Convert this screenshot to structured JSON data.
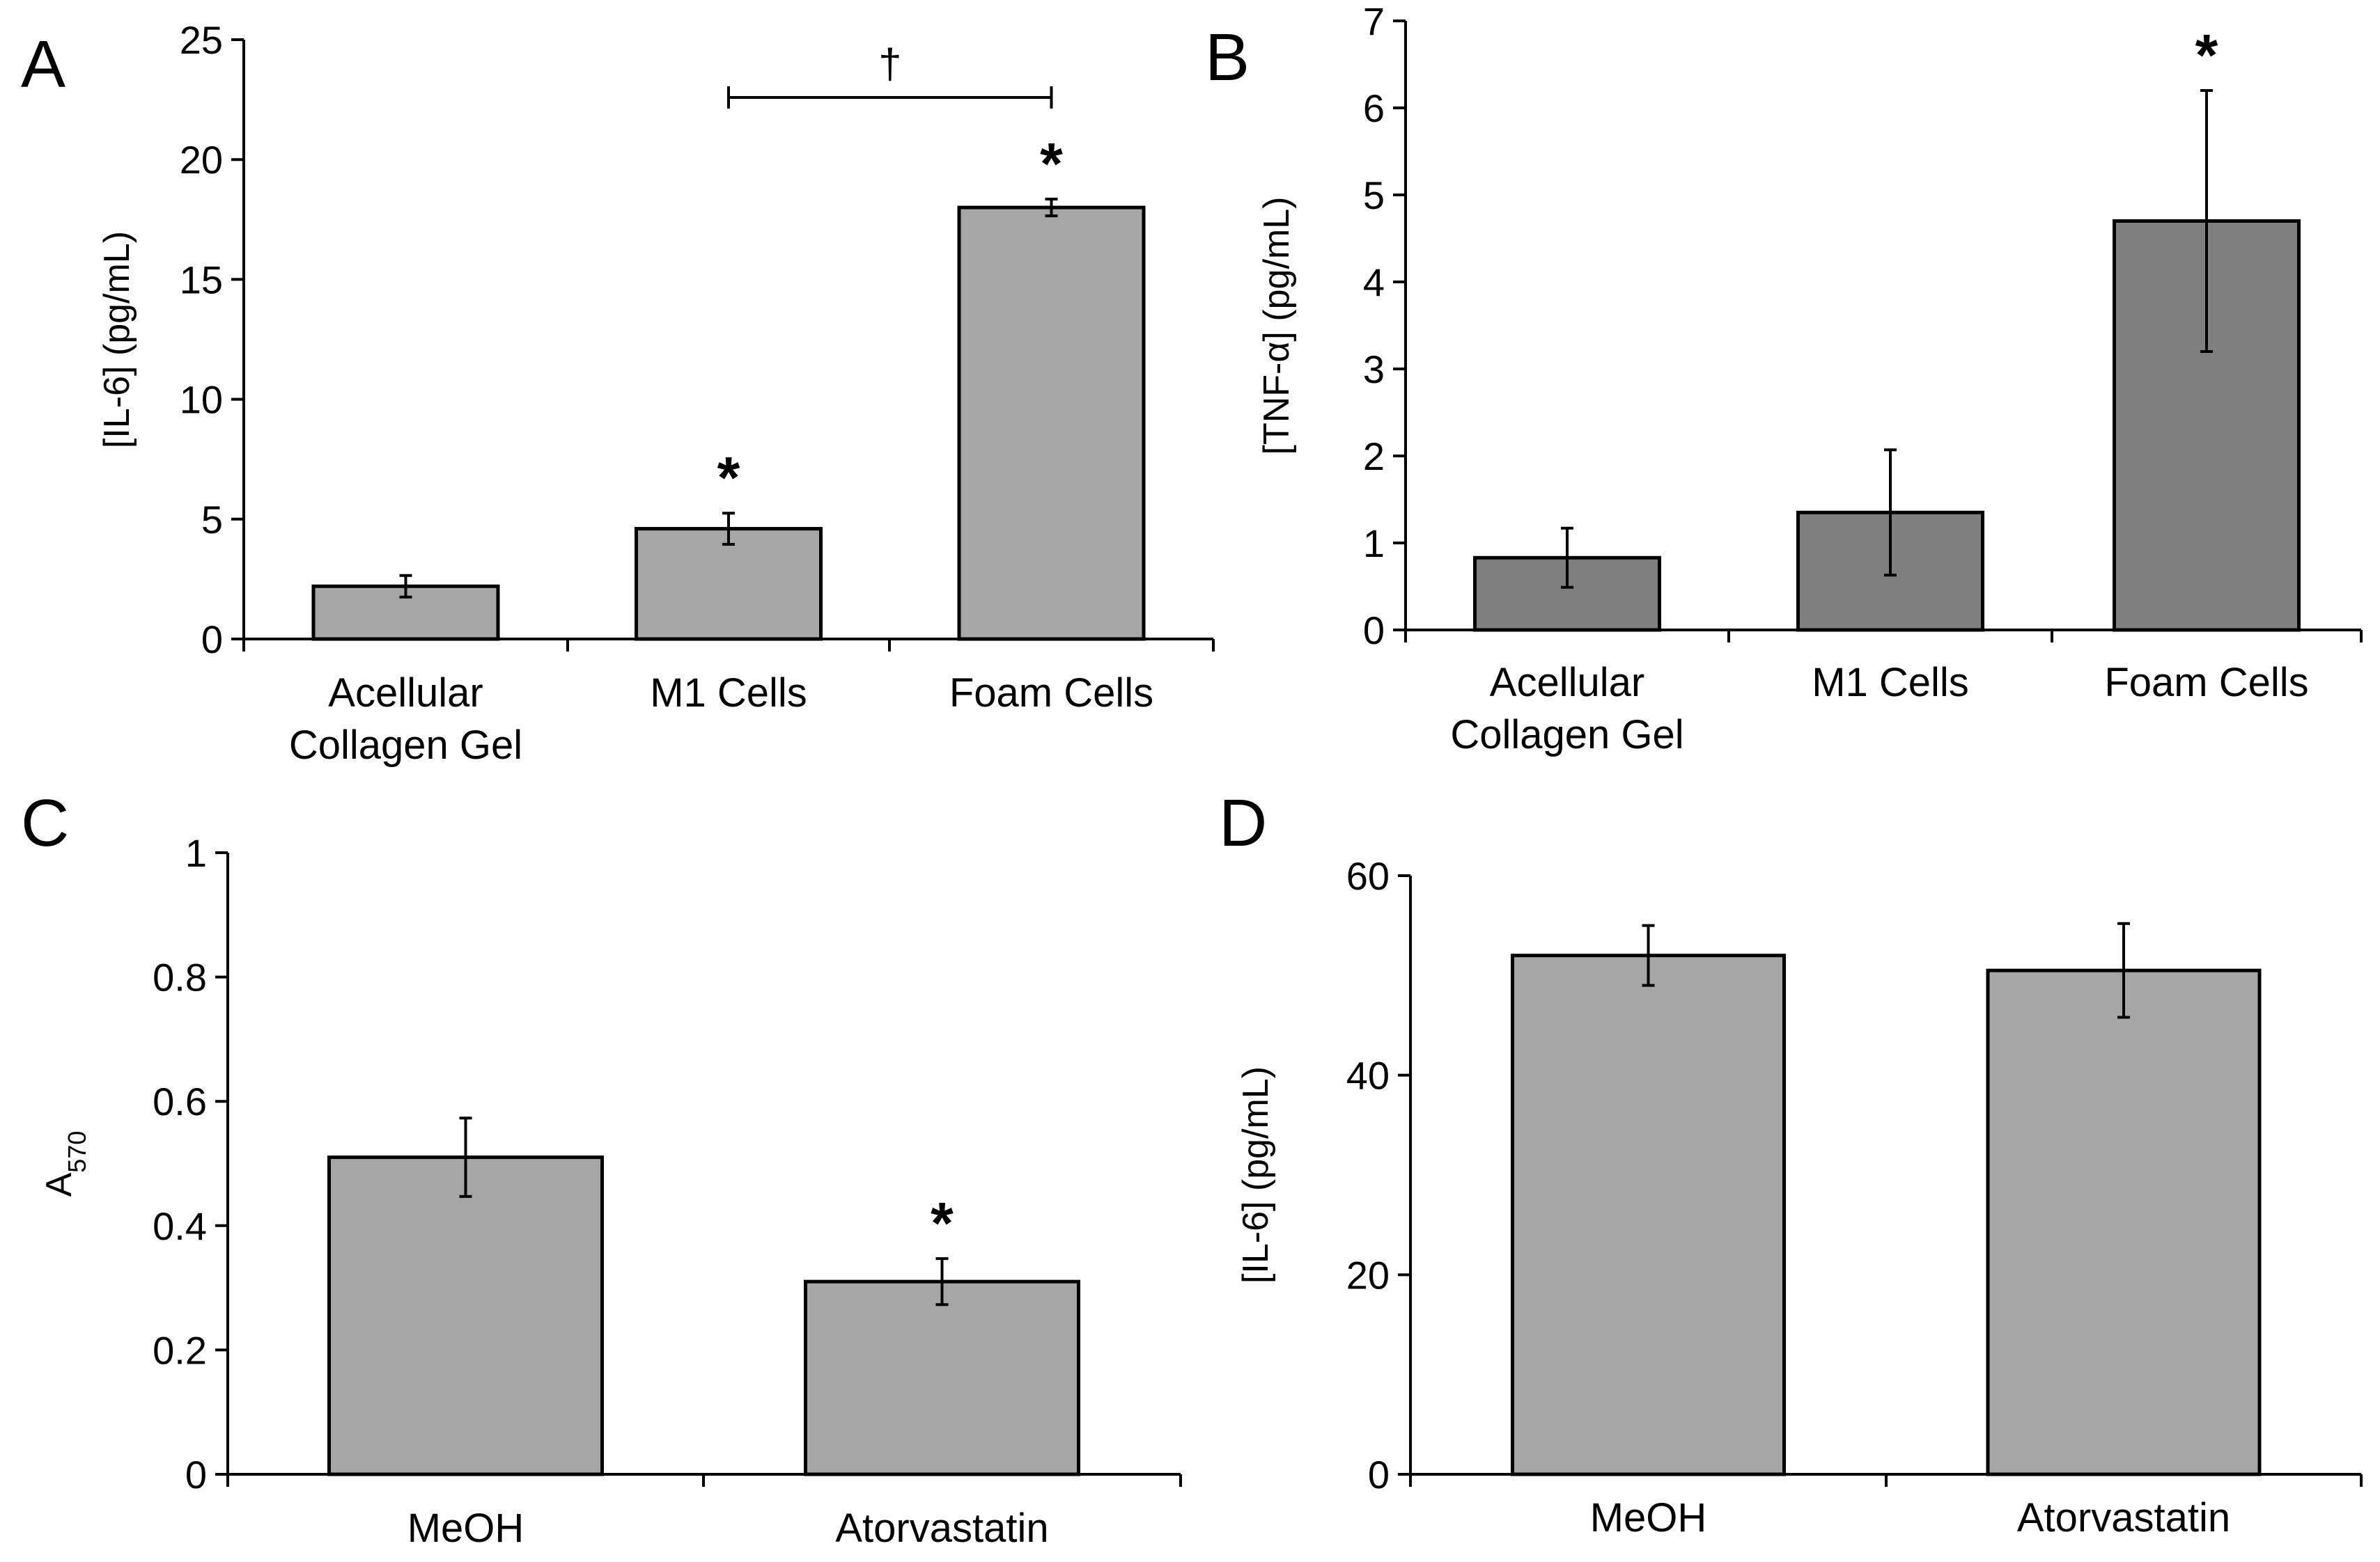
{
  "chart_data": [
    {
      "panel": "A",
      "type": "bar",
      "categories": [
        [
          "Acellular",
          "Collagen Gel"
        ],
        [
          "M1 Cells"
        ],
        [
          "Foam Cells"
        ]
      ],
      "values": [
        2.2,
        4.6,
        18.0
      ],
      "errors": [
        0.45,
        0.65,
        0.35
      ],
      "ylabel": "[IL-6] (pg/mL)",
      "ylim": [
        0,
        25
      ],
      "yticks": [
        0,
        5,
        10,
        15,
        20,
        25
      ],
      "significance": [
        "",
        "*",
        "*"
      ],
      "comparison": {
        "from": 1,
        "to": 2,
        "label": "†"
      },
      "bar_color": "#a6a6a6"
    },
    {
      "panel": "B",
      "type": "bar",
      "categories": [
        [
          "Acellular",
          "Collagen Gel"
        ],
        [
          "M1 Cells"
        ],
        [
          "Foam Cells"
        ]
      ],
      "values": [
        0.83,
        1.35,
        4.7
      ],
      "errors": [
        0.34,
        0.72,
        1.5
      ],
      "ylabel": "[TNF-α] (pg/mL)",
      "ylim": [
        0,
        7
      ],
      "yticks": [
        0,
        1,
        2,
        3,
        4,
        5,
        6,
        7
      ],
      "significance": [
        "",
        "",
        "*"
      ],
      "bar_color": "#7f7f7f"
    },
    {
      "panel": "C",
      "type": "bar",
      "categories": [
        [
          "MeOH"
        ],
        [
          "Atorvastatin"
        ]
      ],
      "values": [
        0.51,
        0.31
      ],
      "errors": [
        0.063,
        0.037
      ],
      "ylabel": "A",
      "ylabel_sub": "570",
      "ylim": [
        0,
        1
      ],
      "yticks": [
        0,
        0.2,
        0.4,
        0.6,
        0.8,
        1
      ],
      "ytick_labels": [
        "0",
        "0.2",
        "0.4",
        "0.6",
        "0.8",
        "1"
      ],
      "significance": [
        "",
        "*"
      ],
      "bar_color": "#a6a6a6"
    },
    {
      "panel": "D",
      "type": "bar",
      "categories": [
        [
          "MeOH"
        ],
        [
          "Atorvastatin"
        ]
      ],
      "values": [
        52,
        50.5
      ],
      "errors": [
        3.0,
        4.7
      ],
      "ylabel": "[IL-6] (pg/mL)",
      "ylim": [
        0,
        60
      ],
      "yticks": [
        0,
        20,
        40,
        60
      ],
      "significance": [
        "",
        ""
      ],
      "bar_color": "#a6a6a6"
    }
  ]
}
